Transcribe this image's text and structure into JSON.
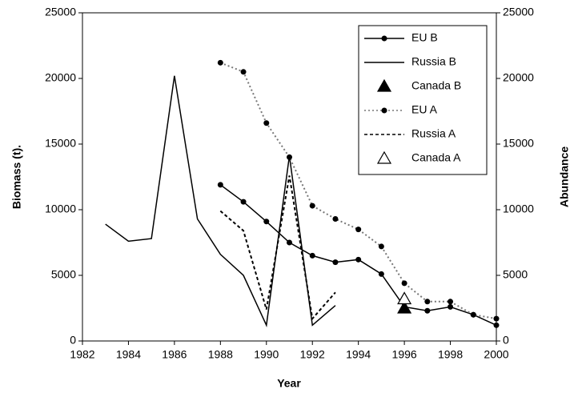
{
  "chart_data": {
    "type": "line",
    "x_label": "Year",
    "y_label": "Biomass (t).",
    "y2_label": "Abundance",
    "xlim": [
      1982,
      2000
    ],
    "xticks": [
      1982,
      1984,
      1986,
      1988,
      1990,
      1992,
      1994,
      1996,
      1998,
      2000
    ],
    "ylim": [
      0,
      25000
    ],
    "yticks": [
      0,
      5000,
      10000,
      15000,
      20000,
      25000
    ],
    "y2lim": [
      0,
      25000
    ],
    "y2ticks": [
      0,
      5000,
      10000,
      15000,
      20000,
      25000
    ],
    "legend": "upper right",
    "series": [
      {
        "name": "EU B",
        "color": "#000000",
        "style": "solid",
        "marker": "dot",
        "x": [
          1988,
          1989,
          1990,
          1991,
          1992,
          1993,
          1994,
          1995,
          1996,
          1997,
          1998,
          1999,
          2000
        ],
        "values": [
          11900,
          10600,
          9100,
          7500,
          6500,
          6000,
          6200,
          5100,
          2600,
          2300,
          2600,
          2000,
          1200
        ]
      },
      {
        "name": "Russia B",
        "color": "#000000",
        "style": "solid",
        "marker": "none",
        "x": [
          1983,
          1984,
          1985,
          1986,
          1987,
          1988,
          1989,
          1990,
          1991,
          1992,
          1993
        ],
        "values": [
          8900,
          7600,
          7800,
          20200,
          9300,
          6600,
          5000,
          1200,
          14100,
          1200,
          2700
        ]
      },
      {
        "name": "Canada B",
        "color": "#000000",
        "style": "none",
        "marker": "triangle-filled",
        "x": [
          1996
        ],
        "values": [
          2500
        ]
      },
      {
        "name": "EU A",
        "color": "#000000",
        "style": "dotted",
        "marker": "dot",
        "axis": "y2",
        "x": [
          1988,
          1989,
          1990,
          1991,
          1992,
          1993,
          1994,
          1995,
          1996,
          1997,
          1998,
          1999,
          2000
        ],
        "values": [
          21200,
          20500,
          16600,
          14000,
          10300,
          9300,
          8500,
          7200,
          4400,
          3000,
          3000,
          2000,
          1700
        ]
      },
      {
        "name": "Russia A",
        "color": "#000000",
        "style": "dashed",
        "marker": "none",
        "axis": "y2",
        "x": [
          1988,
          1989,
          1990,
          1991,
          1992,
          1993
        ],
        "values": [
          9900,
          8400,
          2400,
          12600,
          1700,
          3700
        ]
      },
      {
        "name": "Canada A",
        "color": "#000000",
        "style": "none",
        "marker": "triangle-open",
        "axis": "y2",
        "x": [
          1996
        ],
        "values": [
          3200
        ]
      }
    ]
  }
}
